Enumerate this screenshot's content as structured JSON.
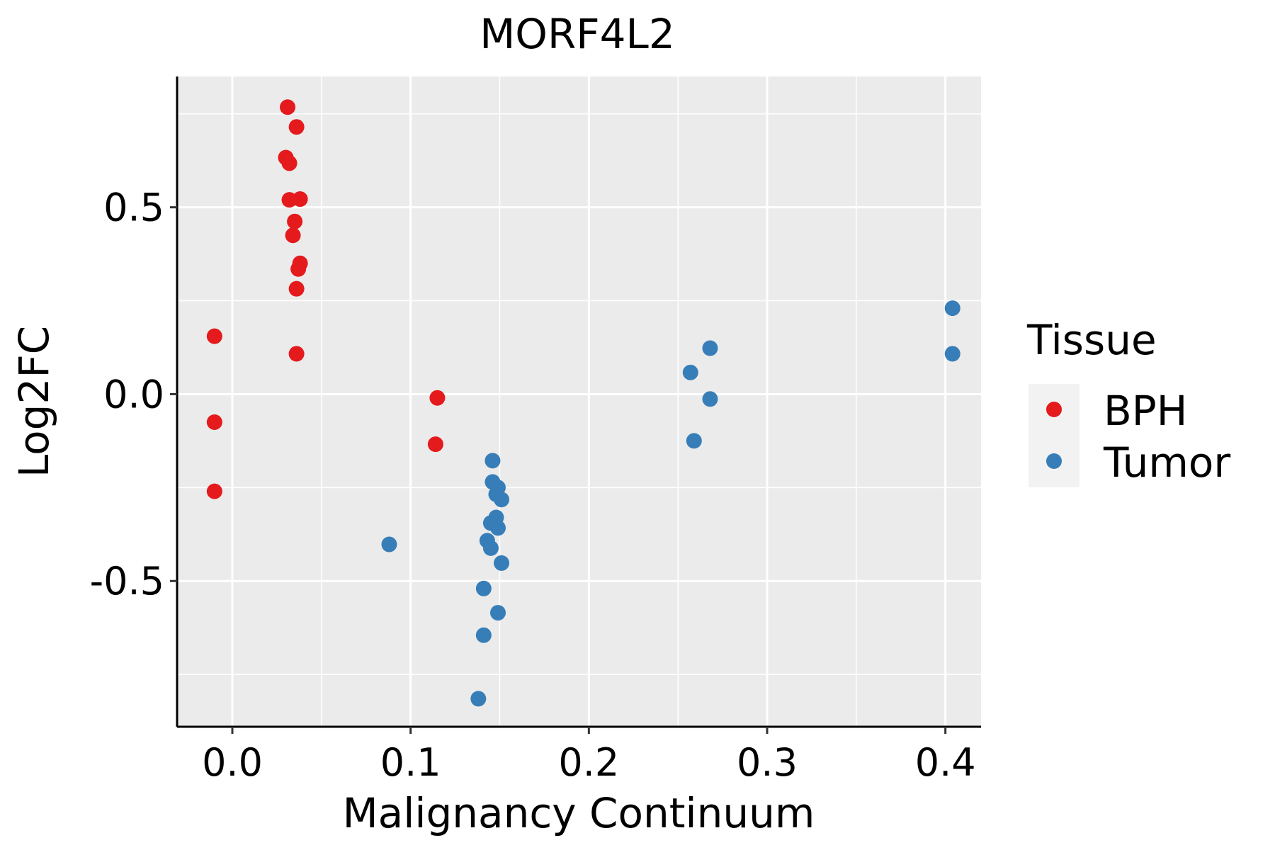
{
  "chart_data": {
    "type": "scatter",
    "title": "MORF4L2",
    "xlabel": "Malignancy Continuum",
    "ylabel": "Log2FC",
    "xlim": [
      -0.031,
      0.42
    ],
    "ylim": [
      -0.89,
      0.85
    ],
    "x_ticks": [
      0.0,
      0.1,
      0.2,
      0.3,
      0.4
    ],
    "x_tick_labels": [
      "0.0",
      "0.1",
      "0.2",
      "0.3",
      "0.4"
    ],
    "y_ticks": [
      -0.5,
      0.0,
      0.5
    ],
    "y_tick_labels": [
      "-0.5",
      "0.0",
      "0.5"
    ],
    "x_minor": [
      0.05,
      0.15,
      0.25,
      0.35
    ],
    "y_minor": [
      -0.75,
      -0.25,
      0.25,
      0.75
    ],
    "grid": true,
    "legend": {
      "title": "Tissue",
      "position": "right",
      "entries": [
        "BPH",
        "Tumor"
      ]
    },
    "series": [
      {
        "name": "BPH",
        "color": "#E41A1C",
        "points": [
          {
            "x": 0.031,
            "y": 0.768
          },
          {
            "x": 0.036,
            "y": 0.715
          },
          {
            "x": 0.03,
            "y": 0.633
          },
          {
            "x": 0.032,
            "y": 0.618
          },
          {
            "x": 0.032,
            "y": 0.52
          },
          {
            "x": 0.038,
            "y": 0.522
          },
          {
            "x": 0.035,
            "y": 0.462
          },
          {
            "x": 0.034,
            "y": 0.425
          },
          {
            "x": 0.038,
            "y": 0.35
          },
          {
            "x": 0.037,
            "y": 0.335
          },
          {
            "x": 0.036,
            "y": 0.282
          },
          {
            "x": 0.036,
            "y": 0.108
          },
          {
            "x": -0.01,
            "y": 0.155
          },
          {
            "x": -0.01,
            "y": -0.075
          },
          {
            "x": -0.01,
            "y": -0.26
          },
          {
            "x": 0.115,
            "y": -0.01
          },
          {
            "x": 0.114,
            "y": -0.134
          }
        ]
      },
      {
        "name": "Tumor",
        "color": "#377EB8",
        "points": [
          {
            "x": 0.146,
            "y": -0.178
          },
          {
            "x": 0.146,
            "y": -0.235
          },
          {
            "x": 0.149,
            "y": -0.25
          },
          {
            "x": 0.148,
            "y": -0.268
          },
          {
            "x": 0.151,
            "y": -0.282
          },
          {
            "x": 0.148,
            "y": -0.33
          },
          {
            "x": 0.145,
            "y": -0.345
          },
          {
            "x": 0.149,
            "y": -0.358
          },
          {
            "x": 0.143,
            "y": -0.392
          },
          {
            "x": 0.145,
            "y": -0.412
          },
          {
            "x": 0.151,
            "y": -0.452
          },
          {
            "x": 0.141,
            "y": -0.52
          },
          {
            "x": 0.149,
            "y": -0.585
          },
          {
            "x": 0.141,
            "y": -0.645
          },
          {
            "x": 0.138,
            "y": -0.815
          },
          {
            "x": 0.088,
            "y": -0.402
          },
          {
            "x": 0.268,
            "y": 0.123
          },
          {
            "x": 0.257,
            "y": 0.058
          },
          {
            "x": 0.268,
            "y": -0.013
          },
          {
            "x": 0.259,
            "y": -0.125
          },
          {
            "x": 0.404,
            "y": 0.23
          },
          {
            "x": 0.404,
            "y": 0.108
          }
        ]
      }
    ]
  }
}
